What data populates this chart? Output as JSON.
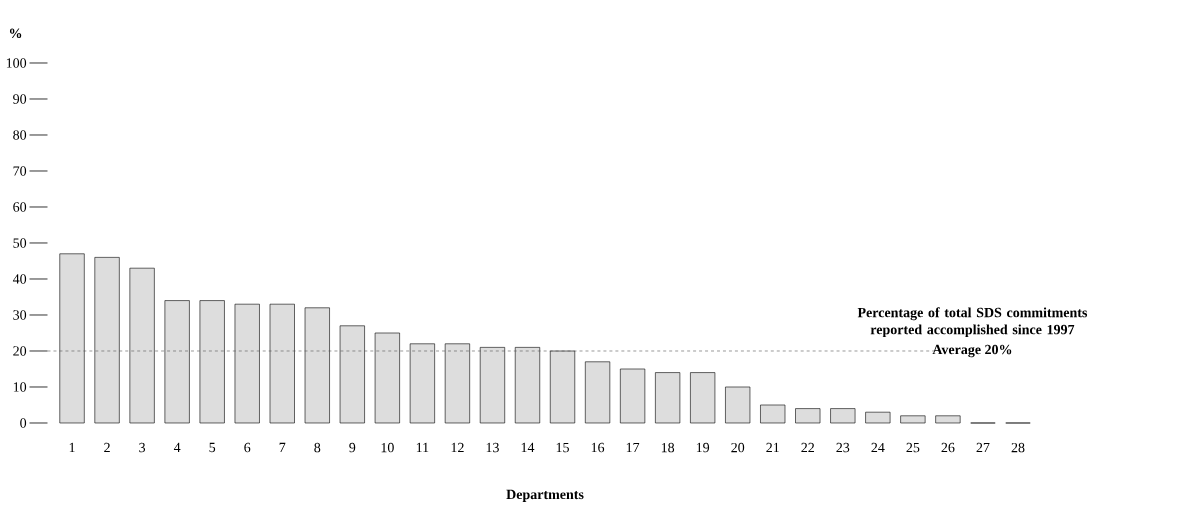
{
  "chart_data": {
    "type": "bar",
    "xlabel": "Departments",
    "ylabel": "%",
    "categories": [
      "1",
      "2",
      "3",
      "4",
      "5",
      "6",
      "7",
      "8",
      "9",
      "10",
      "11",
      "12",
      "13",
      "14",
      "15",
      "16",
      "17",
      "18",
      "19",
      "20",
      "21",
      "22",
      "23",
      "24",
      "25",
      "26",
      "27",
      "28"
    ],
    "values": [
      47,
      46,
      43,
      34,
      34,
      33,
      33,
      32,
      27,
      25,
      22,
      22,
      21,
      21,
      20,
      17,
      15,
      14,
      14,
      10,
      5,
      4,
      4,
      3,
      2,
      2,
      0,
      0
    ],
    "colors": [
      "#dddddd",
      "#dddddd",
      "#dddddd",
      "#dddddd",
      "#dddddd",
      "#dddddd",
      "#dddddd",
      "#dddddd",
      "#dddddd",
      "#dddddd",
      "#dddddd",
      "#dddddd",
      "#dddddd",
      "#dddddd",
      "#dddddd",
      "#dddddd",
      "#dddddd",
      "#dddddd",
      "#dddddd",
      "#dddddd",
      "#dddddd",
      "#dddddd",
      "#dddddd",
      "#dddddd",
      "#dddddd",
      "#dddddd",
      "#000000",
      "#000000"
    ],
    "ylim": [
      0,
      100
    ],
    "yticks": [
      0,
      10,
      20,
      30,
      40,
      50,
      60,
      70,
      80,
      90,
      100
    ],
    "ref_lines": [
      {
        "axis": "y",
        "value": 20,
        "label": "Average 20%",
        "color": "#555555",
        "line_style": "dashed"
      }
    ],
    "annotations": [
      "Percentage of total SDS commitments reported accomplished since 1997"
    ]
  }
}
